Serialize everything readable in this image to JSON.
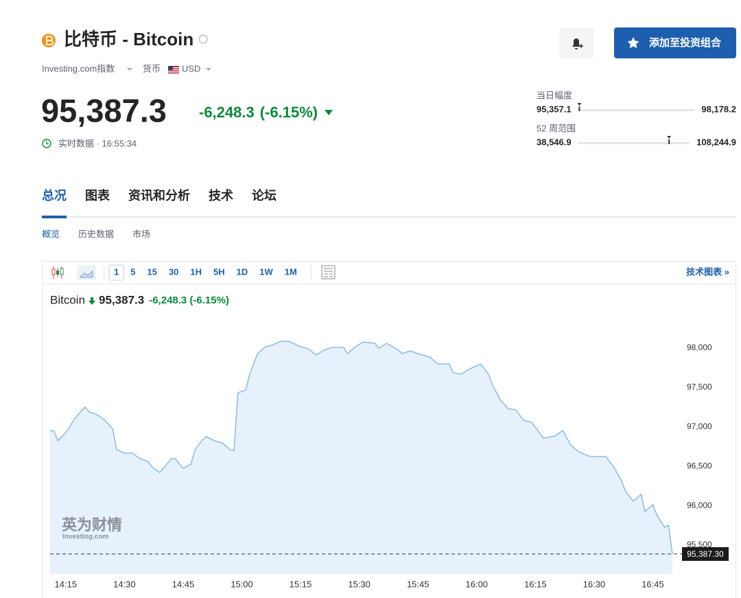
{
  "header": {
    "title": "比特币 - Bitcoin",
    "index": "Investing.com指数",
    "currency_label": "货币",
    "currency": "USD",
    "add_button": "添加至投资组合"
  },
  "quote": {
    "price": "95,387.3",
    "change": "-6,248.3",
    "change_pct": "(-6.15%)",
    "realtime": "实时数据 · 16:55:34"
  },
  "ranges": [
    {
      "label": "当日幅度",
      "low": "95,357.1",
      "high": "98,178.2"
    },
    {
      "label": "52 周范围",
      "low": "38,546.9",
      "high": "108,244.9"
    }
  ],
  "tabs": [
    "总况",
    "图表",
    "资讯和分析",
    "技术",
    "论坛"
  ],
  "subtabs": [
    "概览",
    "历史数据",
    "市场"
  ],
  "toolbar": {
    "intervals": [
      "1",
      "5",
      "15",
      "30",
      "1H",
      "5H",
      "1D",
      "1W",
      "1M"
    ],
    "tech_chart": "技术图表 »"
  },
  "chart_data": {
    "type": "area",
    "legend_price": "95,387.3",
    "legend_change": "-6,248.3 (-6.15%)",
    "watermark": "英为财情",
    "watermark_sub": "Investing.com",
    "x": [
      "14:11",
      "14:12",
      "14:13",
      "14:15",
      "14:16",
      "14:17",
      "14:19",
      "14:20",
      "14:21",
      "14:23",
      "14:25",
      "14:27",
      "14:28",
      "14:30",
      "14:32",
      "14:34",
      "14:36",
      "14:37",
      "14:39",
      "14:40",
      "14:42",
      "14:43",
      "14:45",
      "14:47",
      "14:48",
      "14:50",
      "14:51",
      "14:53",
      "14:55",
      "14:57",
      "14:58",
      "14:59",
      "15:01",
      "15:02",
      "15:04",
      "15:06",
      "15:08",
      "15:10",
      "15:12",
      "15:15",
      "15:17",
      "15:19",
      "15:21",
      "15:23",
      "15:26",
      "15:27",
      "15:29",
      "15:31",
      "15:34",
      "15:35",
      "15:37",
      "15:40",
      "15:41",
      "15:43",
      "15:45",
      "15:48",
      "15:50",
      "15:53",
      "15:54",
      "15:56",
      "15:58",
      "16:01",
      "16:03",
      "16:04",
      "16:06",
      "16:08",
      "16:10",
      "16:12",
      "16:14",
      "16:16",
      "16:17",
      "16:20",
      "16:22",
      "16:24",
      "16:26",
      "16:29",
      "16:31",
      "16:33",
      "16:35",
      "16:37",
      "16:38",
      "16:40",
      "16:42",
      "16:43",
      "16:45",
      "16:46",
      "16:48",
      "16:49",
      "16:50"
    ],
    "series": [
      {
        "name": "Bitcoin",
        "color": "#7ab3e0",
        "values": [
          96955,
          96946,
          96824,
          96929,
          96998,
          97085,
          97207,
          97251,
          97190,
          97155,
          97085,
          96972,
          96711,
          96667,
          96667,
          96598,
          96563,
          96493,
          96423,
          96476,
          96598,
          96598,
          96476,
          96528,
          96711,
          96841,
          96876,
          96824,
          96798,
          96711,
          96702,
          97434,
          97469,
          97669,
          97930,
          98017,
          98044,
          98087,
          98087,
          98017,
          97991,
          97913,
          97974,
          98009,
          98009,
          97930,
          98017,
          98078,
          98061,
          98000,
          98061,
          97974,
          97930,
          97965,
          97930,
          97887,
          97800,
          97800,
          97686,
          97669,
          97730,
          97800,
          97669,
          97538,
          97347,
          97234,
          97216,
          97085,
          97059,
          96929,
          96859,
          96885,
          96955,
          96772,
          96685,
          96624,
          96624,
          96624,
          96493,
          96319,
          96188,
          96057,
          96145,
          95927,
          96014,
          95883,
          95726,
          95753,
          95387.3
        ]
      }
    ],
    "price_line": {
      "value": 95387.3,
      "label": "95,387.30"
    },
    "xlim": [
      "14:11",
      "16:50"
    ],
    "xticks": [
      "14:15",
      "14:30",
      "14:45",
      "15:00",
      "15:15",
      "15:30",
      "15:45",
      "16:00",
      "16:15",
      "16:30",
      "16:45"
    ],
    "ylim": [
      95134,
      98340
    ],
    "yticks": [
      {
        "value": 95500,
        "label": "95,500"
      },
      {
        "value": 96000,
        "label": "96,000"
      },
      {
        "value": 96500,
        "label": "96,500"
      },
      {
        "value": 97000,
        "label": "97,000"
      },
      {
        "value": 97500,
        "label": "97,500"
      },
      {
        "value": 98000,
        "label": "98,000"
      }
    ],
    "grid": false
  }
}
